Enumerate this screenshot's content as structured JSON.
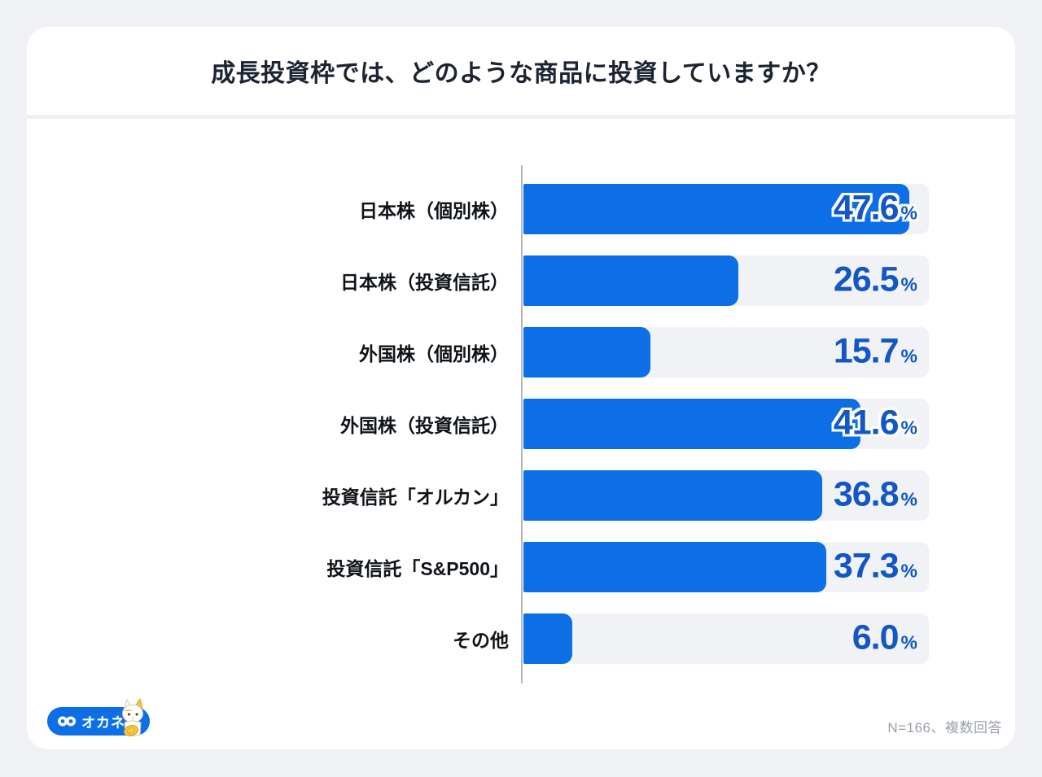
{
  "title": "成長投資枠では、どのような商品に投資していますか？",
  "chart_data": {
    "type": "bar",
    "orientation": "horizontal",
    "categories": [
      "日本株（個別株）",
      "日本株（投資信託）",
      "外国株（個別株）",
      "外国株（投資信託）",
      "投資信託「オルカン」",
      "投資信託「S&P500」",
      "その他"
    ],
    "values": [
      47.6,
      26.5,
      15.7,
      41.6,
      36.8,
      37.3,
      6.0
    ],
    "unit": "%",
    "xlim": [
      0,
      50
    ],
    "grid": false,
    "legend": "none",
    "bar_color": "#0c6fe6",
    "track_color": "#f0f2f5",
    "value_color": "#1257c4"
  },
  "footer": {
    "logo_text": "オカネコ",
    "note": "N=166、複数回答"
  }
}
